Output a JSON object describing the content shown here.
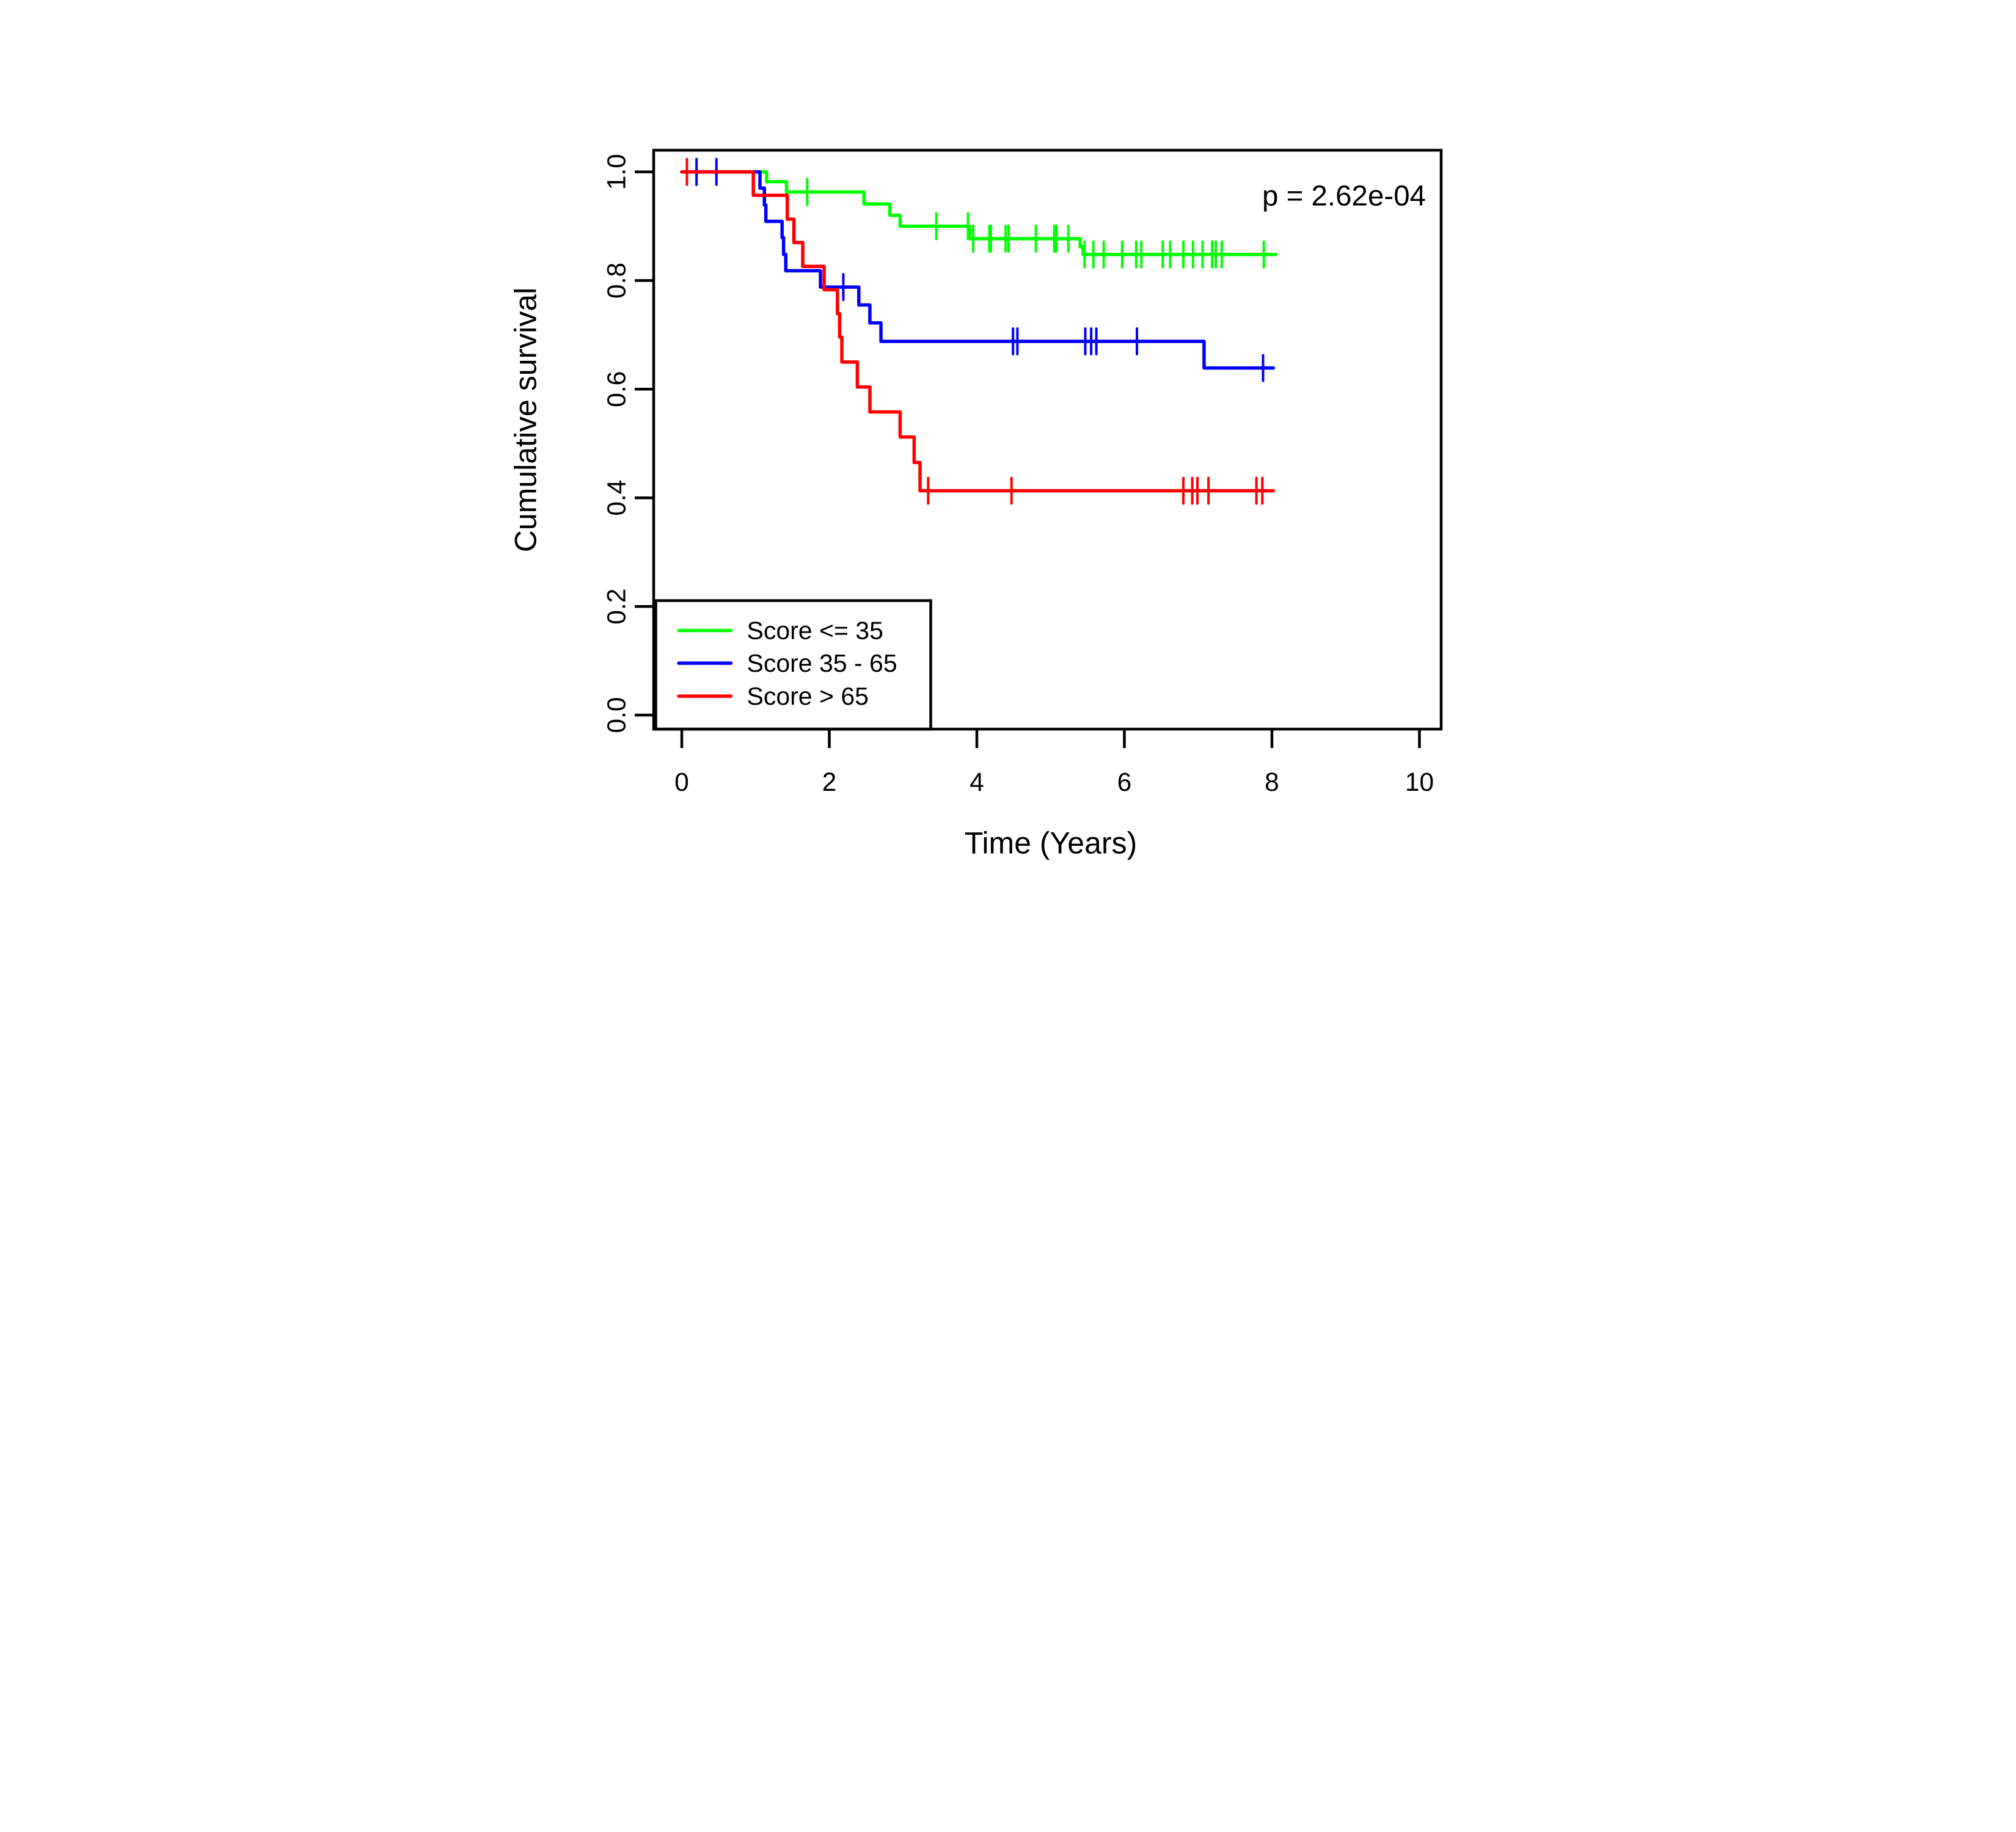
{
  "figure": {
    "title": "",
    "p_value_text": "p = 2.62e-04",
    "x_axis_label": "Time (Years)",
    "y_axis_label": "Cumulative survival",
    "x_tick_labels": [
      "0",
      "2",
      "4",
      "6",
      "8",
      "10"
    ],
    "y_tick_labels": [
      "0.0",
      "0.2",
      "0.4",
      "0.6",
      "0.8",
      "1.0"
    ],
    "background_color": "#FFFFFF",
    "axis_color": "#000000"
  },
  "legend": {
    "items": [
      {
        "label": "Score <= 35",
        "color": "#00FF00"
      },
      {
        "label": "Score 35 - 65",
        "color": "#0000FF"
      },
      {
        "label": "Score > 65",
        "color": "#FF0000"
      }
    ]
  },
  "chart_data": {
    "type": "line",
    "subtype": "kaplan-meier-step",
    "title": "",
    "xlabel": "Time (Years)",
    "ylabel": "Cumulative survival",
    "annotation": "p = 2.62e-04",
    "xlim": [
      -0.38,
      10.3
    ],
    "ylim": [
      -0.035,
      1.04
    ],
    "x_tick_values": [
      0,
      2,
      4,
      6,
      8,
      10
    ],
    "y_tick_values": [
      0.0,
      0.2,
      0.4,
      0.6,
      0.8,
      1.0
    ],
    "grid": false,
    "legend_position": "bottom-left",
    "series": [
      {
        "name": "Score <= 35",
        "color": "#00FF00",
        "steps": [
          [
            0,
            1.0
          ],
          [
            1.15,
            0.982
          ],
          [
            1.42,
            0.963
          ],
          [
            2.47,
            0.941
          ],
          [
            2.82,
            0.92
          ],
          [
            2.96,
            0.9
          ],
          [
            3.9,
            0.877
          ],
          [
            5.4,
            0.862
          ],
          [
            5.44,
            0.848
          ]
        ],
        "end_time": 8.05,
        "censors": [
          [
            1.7,
            0.963
          ],
          [
            3.45,
            0.9
          ],
          [
            3.88,
            0.9
          ],
          [
            3.95,
            0.877
          ],
          [
            4.17,
            0.877
          ],
          [
            4.19,
            0.877
          ],
          [
            4.39,
            0.877
          ],
          [
            4.43,
            0.877
          ],
          [
            4.8,
            0.877
          ],
          [
            5.05,
            0.877
          ],
          [
            5.08,
            0.877
          ],
          [
            5.24,
            0.877
          ],
          [
            5.46,
            0.848
          ],
          [
            5.58,
            0.848
          ],
          [
            5.72,
            0.848
          ],
          [
            5.97,
            0.848
          ],
          [
            6.16,
            0.848
          ],
          [
            6.23,
            0.848
          ],
          [
            6.52,
            0.848
          ],
          [
            6.62,
            0.848
          ],
          [
            6.8,
            0.848
          ],
          [
            6.93,
            0.848
          ],
          [
            7.06,
            0.848
          ],
          [
            7.19,
            0.848
          ],
          [
            7.24,
            0.848
          ],
          [
            7.32,
            0.848
          ],
          [
            7.89,
            0.848
          ]
        ]
      },
      {
        "name": "Score 35 - 65",
        "color": "#0000FF",
        "steps": [
          [
            0,
            1.0
          ],
          [
            1.06,
            0.97
          ],
          [
            1.12,
            0.939
          ],
          [
            1.14,
            0.909
          ],
          [
            1.36,
            0.879
          ],
          [
            1.38,
            0.848
          ],
          [
            1.41,
            0.818
          ],
          [
            1.88,
            0.788
          ],
          [
            2.4,
            0.755
          ],
          [
            2.55,
            0.722
          ],
          [
            2.7,
            0.688
          ],
          [
            7.08,
            0.639
          ]
        ],
        "end_time": 8.02,
        "censors": [
          [
            0.2,
            1.0
          ],
          [
            0.47,
            1.0
          ],
          [
            2.19,
            0.788
          ],
          [
            4.49,
            0.688
          ],
          [
            4.55,
            0.688
          ],
          [
            5.47,
            0.688
          ],
          [
            5.55,
            0.688
          ],
          [
            5.62,
            0.688
          ],
          [
            6.17,
            0.688
          ],
          [
            7.88,
            0.639
          ]
        ]
      },
      {
        "name": "Score > 65",
        "color": "#FF0000",
        "steps": [
          [
            0,
            1.0
          ],
          [
            0.97,
            0.957
          ],
          [
            1.43,
            0.913
          ],
          [
            1.52,
            0.87
          ],
          [
            1.64,
            0.826
          ],
          [
            1.93,
            0.783
          ],
          [
            2.11,
            0.739
          ],
          [
            2.14,
            0.696
          ],
          [
            2.17,
            0.65
          ],
          [
            2.38,
            0.604
          ],
          [
            2.55,
            0.558
          ],
          [
            2.96,
            0.512
          ],
          [
            3.15,
            0.465
          ],
          [
            3.23,
            0.413
          ]
        ],
        "end_time": 8.02,
        "censors": [
          [
            0.07,
            1.0
          ],
          [
            3.34,
            0.413
          ],
          [
            4.47,
            0.413
          ],
          [
            6.8,
            0.413
          ],
          [
            6.92,
            0.413
          ],
          [
            6.99,
            0.413
          ],
          [
            7.14,
            0.413
          ],
          [
            7.79,
            0.413
          ],
          [
            7.87,
            0.413
          ]
        ]
      }
    ]
  }
}
